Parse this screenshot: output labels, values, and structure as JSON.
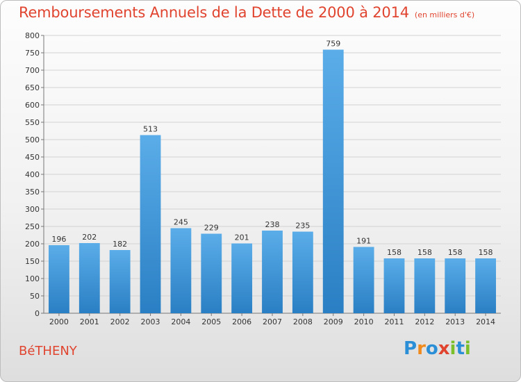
{
  "title": "Remboursements Annuels de la Dette de 2000 à 2014",
  "unit": "(en milliers d'€)",
  "commune": "BéTHENY",
  "logo": {
    "letters": [
      "P",
      "r",
      "o",
      "x",
      "i",
      "t",
      "i"
    ],
    "colors": [
      "#2a8fd6",
      "#f08a1c",
      "#2a8fd6",
      "#e0442f",
      "#7bbf2a",
      "#2a8fd6",
      "#7bbf2a"
    ]
  },
  "colors": {
    "bar_light": "#5aade8",
    "bar_dark": "#2a7fc4",
    "text": "#e0442f",
    "grid": "#d2d2d2"
  },
  "chart_data": {
    "type": "bar",
    "categories": [
      "2000",
      "2001",
      "2002",
      "2003",
      "2004",
      "2005",
      "2006",
      "2007",
      "2008",
      "2009",
      "2010",
      "2011",
      "2012",
      "2013",
      "2014"
    ],
    "values": [
      196,
      202,
      182,
      513,
      245,
      229,
      201,
      238,
      235,
      759,
      191,
      158,
      158,
      158,
      158
    ],
    "ylim": [
      0,
      800
    ],
    "yticks": [
      0,
      50,
      100,
      150,
      200,
      250,
      300,
      350,
      400,
      450,
      500,
      550,
      600,
      650,
      700,
      750,
      800
    ],
    "grid": true
  }
}
